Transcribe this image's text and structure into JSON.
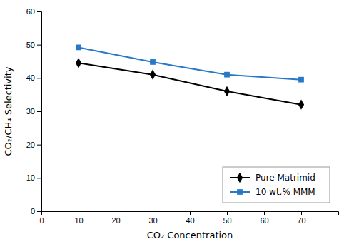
{
  "chart_data": {
    "type": "line",
    "x": [
      10,
      30,
      50,
      70
    ],
    "series": [
      {
        "name": "Pure Matrimid",
        "color": "#000000",
        "marker": "diamond",
        "values": [
          44.5,
          41.0,
          36.0,
          32.0
        ]
      },
      {
        "name": "10 wt.% MMM",
        "color": "#2878c8",
        "marker": "square",
        "values": [
          49.2,
          44.8,
          41.0,
          39.5
        ]
      }
    ],
    "xlabel": "CO₂ Concentration",
    "ylabel": "CO₂/CH₄ Selectivity",
    "xlim": [
      0,
      80
    ],
    "ylim": [
      0,
      60
    ],
    "xticks": [
      0,
      10,
      20,
      30,
      40,
      50,
      60,
      70
    ],
    "yticks": [
      0,
      10,
      20,
      30,
      40,
      50,
      60
    ],
    "grid": false,
    "legend": "lower right"
  }
}
